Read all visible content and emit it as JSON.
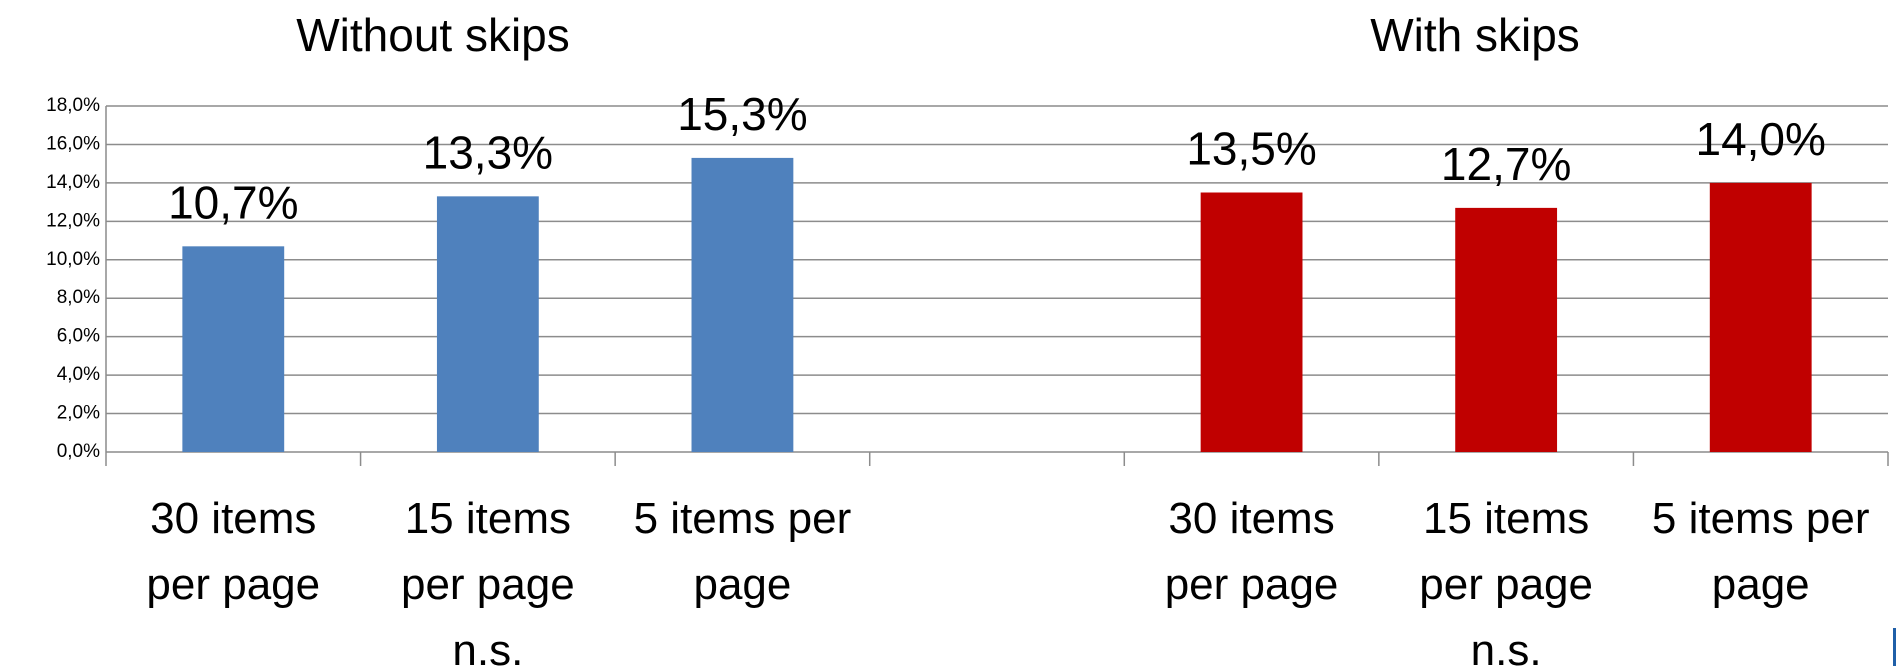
{
  "chart_data": {
    "type": "bar",
    "annotations": [
      "Without skips",
      "With skips"
    ],
    "categories": [
      "30 items\nper page",
      "15 items\nper page\nn.s.",
      "5 items per\npage",
      null,
      "30 items\nper page",
      "15 items\nper page\nn.s.",
      "5 items per\npage"
    ],
    "values": [
      10.7,
      13.3,
      15.3,
      null,
      13.5,
      12.7,
      14.0
    ],
    "value_labels": [
      "10,7%",
      "13,3%",
      "15,3%",
      null,
      "13,5%",
      "12,7%",
      "14,0%"
    ],
    "colors": [
      "#4f81bd",
      "#4f81bd",
      "#4f81bd",
      null,
      "#c00000",
      "#c00000",
      "#c00000"
    ],
    "ylim": [
      0,
      18
    ],
    "yticks": [
      {
        "value": 0,
        "label": "0,0%"
      },
      {
        "value": 2,
        "label": "2,0%"
      },
      {
        "value": 4,
        "label": "4,0%"
      },
      {
        "value": 6,
        "label": "6,0%"
      },
      {
        "value": 8,
        "label": "8,0%"
      },
      {
        "value": 10,
        "label": "10,0%"
      },
      {
        "value": 12,
        "label": "12,0%"
      },
      {
        "value": 14,
        "label": "14,0%"
      },
      {
        "value": 16,
        "label": "16,0%"
      },
      {
        "value": 18,
        "label": "18,0%"
      }
    ],
    "grid": true
  }
}
